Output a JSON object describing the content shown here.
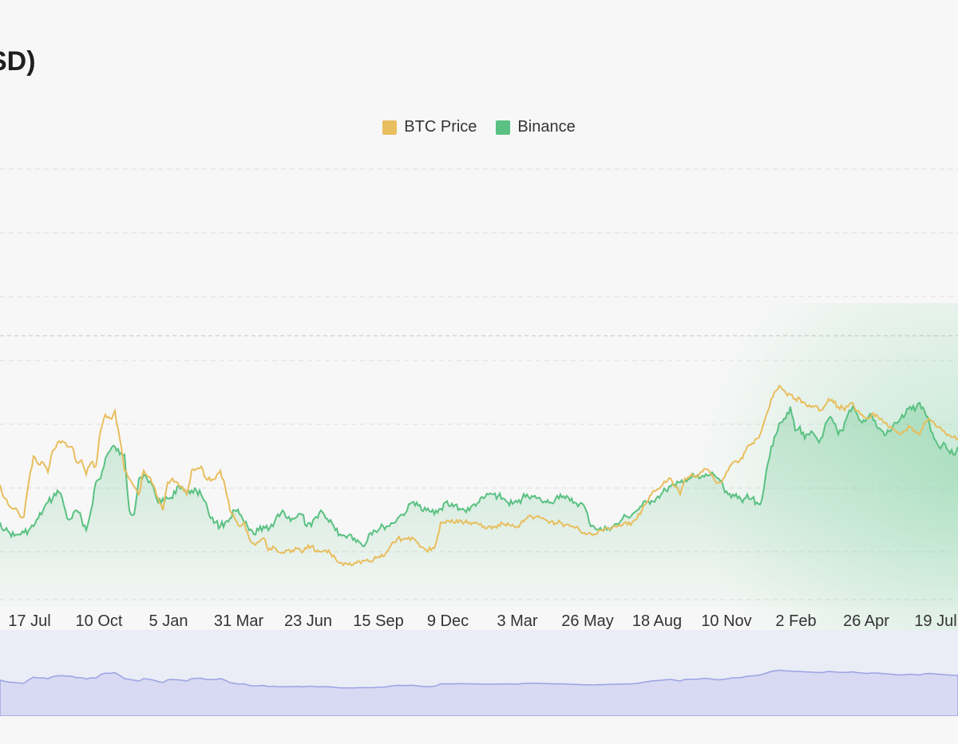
{
  "title": "SD)",
  "legend": [
    {
      "label": "BTC Price",
      "color": "#e8be5e"
    },
    {
      "label": "Binance",
      "color": "#5ac182"
    }
  ],
  "chart_data": {
    "type": "line",
    "x_ticks": [
      "17 Jul",
      "10 Oct",
      "5 Jan",
      "31 Mar",
      "23 Jun",
      "15 Sep",
      "9 Dec",
      "3 Mar",
      "26 May",
      "18 Aug",
      "10 Nov",
      "2 Feb",
      "26 Apr",
      "19 Jul"
    ],
    "x_index": [
      0,
      6,
      12,
      18,
      24,
      30,
      36,
      42,
      48,
      54,
      60,
      66,
      72,
      78,
      84,
      90,
      96,
      102,
      108,
      114,
      120,
      126,
      132,
      138,
      144,
      150,
      156,
      162,
      168,
      174,
      180,
      186,
      192,
      198,
      204,
      210,
      216,
      222,
      228,
      234,
      240,
      246,
      252,
      258,
      264,
      270,
      276,
      282,
      288,
      294,
      300,
      306,
      312,
      318,
      324,
      330,
      336,
      342,
      348,
      354,
      360,
      366,
      372,
      378,
      384,
      390,
      396,
      402,
      408,
      414,
      420,
      426,
      432,
      438,
      444,
      450,
      456,
      462,
      468,
      474,
      480,
      486,
      492,
      498,
      504,
      510,
      516,
      522,
      528,
      534,
      540,
      546,
      552,
      558,
      564,
      570,
      576,
      582,
      588,
      594,
      600,
      606,
      612,
      618,
      624,
      630,
      636,
      642,
      648,
      654,
      660,
      666,
      672,
      678,
      684,
      690,
      696,
      702,
      708,
      714,
      720,
      726,
      732,
      738,
      744,
      750,
      756,
      762,
      768,
      774,
      780,
      786,
      792,
      798,
      804,
      810,
      816,
      822,
      828,
      834,
      840,
      846,
      852,
      858,
      864,
      870,
      876,
      882,
      888,
      894,
      900,
      906,
      912,
      918,
      924,
      930,
      936,
      942,
      948,
      954,
      960,
      966,
      972,
      978,
      984,
      990,
      996,
      1002,
      1008,
      1014,
      1020,
      1026,
      1032,
      1038,
      1044,
      1050,
      1056,
      1062,
      1068,
      1074,
      1080,
      1086,
      1092,
      1098,
      1104,
      1110,
      1116,
      1122,
      1128,
      1134,
      1140,
      1146,
      1152,
      1158,
      1164,
      1170,
      1176,
      1182,
      1188,
      1194,
      1200
    ],
    "series": [
      {
        "name": "BTC Price",
        "color": "#e8be5e",
        "values": [
          608,
          625,
          635,
          638,
          645,
          648,
          605,
          572,
          582,
          580,
          592,
          565,
          555,
          553,
          560,
          560,
          580,
          577,
          595,
          580,
          585,
          540,
          520,
          525,
          515,
          550,
          590,
          600,
          610,
          620,
          590,
          598,
          608,
          625,
          640,
          605,
          600,
          605,
          610,
          620,
          590,
          588,
          585,
          600,
          603,
          600,
          590,
          610,
          640,
          650,
          660,
          655,
          675,
          682,
          680,
          675,
          690,
          685,
          692,
          693,
          690,
          690,
          688,
          693,
          688,
          685,
          692,
          692,
          690,
          694,
          700,
          706,
          706,
          706,
          706,
          704,
          703,
          704,
          702,
          698,
          698,
          690,
          680,
          675,
          676,
          676,
          674,
          680,
          686,
          690,
          690,
          682,
          655,
          656,
          655,
          656,
          652,
          655,
          655,
          656,
          658,
          660,
          660,
          660,
          658,
          657,
          656,
          658,
          660,
          653,
          650,
          648,
          648,
          650,
          652,
          654,
          656,
          655,
          658,
          660,
          662,
          665,
          668,
          668,
          670,
          665,
          666,
          663,
          660,
          660,
          658,
          658,
          655,
          650,
          640,
          630,
          620,
          615,
          610,
          605,
          600,
          610,
          620,
          600,
          598,
          598,
          595,
          588,
          590,
          600,
          605,
          600,
          590,
          580,
          580,
          575,
          560,
          556,
          550,
          540,
          520,
          500,
          490,
          485,
          492,
          495,
          500,
          500,
          505,
          508,
          510,
          515,
          510,
          500,
          505,
          510,
          512,
          510,
          505,
          515,
          520,
          525,
          520,
          520,
          525,
          530,
          535,
          540,
          545,
          540,
          535,
          540,
          545,
          530,
          525,
          530,
          535,
          540,
          545,
          548,
          550
        ]
      },
      {
        "name": "Binance",
        "color": "#5ac182",
        "values": [
          655,
          665,
          668,
          672,
          670,
          668,
          665,
          660,
          650,
          640,
          630,
          625,
          615,
          625,
          650,
          650,
          640,
          650,
          665,
          640,
          605,
          600,
          575,
          565,
          560,
          570,
          570,
          640,
          645,
          600,
          595,
          605,
          610,
          630,
          625,
          625,
          625,
          610,
          610,
          620,
          615,
          615,
          620,
          630,
          650,
          655,
          660,
          655,
          650,
          640,
          645,
          655,
          665,
          670,
          665,
          660,
          665,
          660,
          645,
          640,
          650,
          650,
          648,
          645,
          660,
          660,
          648,
          640,
          650,
          652,
          665,
          670,
          672,
          670,
          675,
          680,
          685,
          670,
          665,
          665,
          660,
          660,
          656,
          650,
          645,
          640,
          630,
          630,
          640,
          640,
          642,
          640,
          638,
          630,
          635,
          633,
          638,
          640,
          640,
          632,
          630,
          625,
          620,
          620,
          622,
          625,
          630,
          632,
          630,
          625,
          620,
          622,
          625,
          628,
          630,
          630,
          625,
          620,
          625,
          628,
          630,
          632,
          635,
          655,
          660,
          664,
          665,
          662,
          660,
          658,
          650,
          648,
          645,
          640,
          635,
          630,
          628,
          625,
          620,
          615,
          610,
          610,
          605,
          602,
          600,
          598,
          600,
          598,
          596,
          595,
          600,
          610,
          620,
          620,
          625,
          630,
          620,
          625,
          630,
          628,
          590,
          560,
          545,
          530,
          525,
          510,
          540,
          535,
          550,
          545,
          545,
          555,
          540,
          525,
          530,
          545,
          540,
          520,
          510,
          520,
          530,
          525,
          520,
          535,
          540,
          545,
          540,
          530,
          525,
          520,
          510,
          515,
          505,
          515,
          530,
          550,
          560,
          555,
          565,
          570,
          560
        ]
      }
    ],
    "grid": true,
    "legend_position": "top"
  }
}
